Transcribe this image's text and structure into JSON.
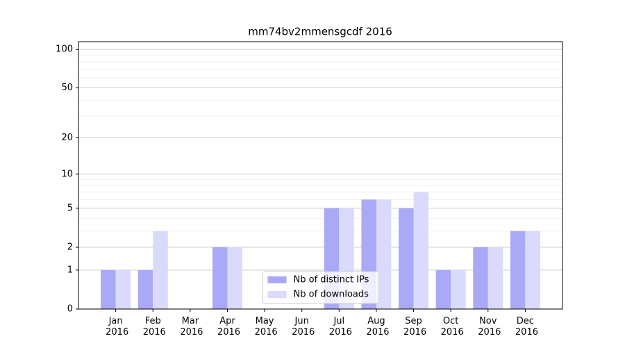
{
  "chart_data": {
    "type": "bar",
    "title": "mm74bv2mmensgcdf 2016",
    "categories": [
      "Jan 2016",
      "Feb 2016",
      "Mar 2016",
      "Apr 2016",
      "May 2016",
      "Jun 2016",
      "Jul 2016",
      "Aug 2016",
      "Sep 2016",
      "Oct 2016",
      "Nov 2016",
      "Dec 2016"
    ],
    "series": [
      {
        "name": "Nb of distinct IPs",
        "color": "#a9a9f8",
        "values": [
          1,
          1,
          0,
          2,
          0,
          0,
          5,
          6,
          5,
          1,
          2,
          3
        ]
      },
      {
        "name": "Nb of downloads",
        "color": "#dadafc",
        "values": [
          1,
          3,
          0,
          2,
          0,
          0,
          5,
          6,
          7,
          1,
          2,
          3
        ]
      }
    ],
    "yscale": "log1p",
    "ylim": [
      0,
      115
    ],
    "yticks": [
      0,
      1,
      2,
      5,
      10,
      20,
      50,
      100
    ],
    "minor_yticks": [
      3,
      4,
      6,
      7,
      8,
      9,
      30,
      40,
      60,
      70,
      80,
      90
    ],
    "grid": true,
    "legend": "lower center"
  }
}
